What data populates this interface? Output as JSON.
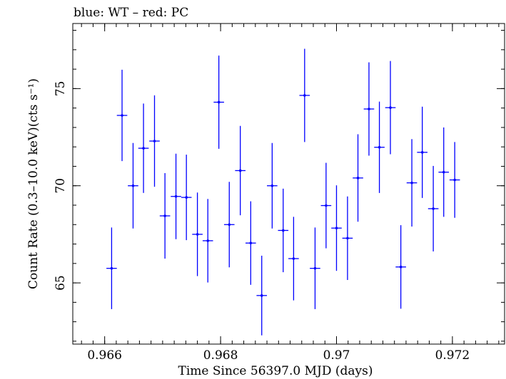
{
  "chart_data": {
    "type": "scatter",
    "title": "blue: WT – red: PC",
    "xlabel": "Time Since 56397.0 MJD (days)",
    "ylabel": "Count Rate (0.3–10.0 keV)(cts s⁻¹)",
    "xlim": [
      0.96545,
      0.9729
    ],
    "ylim": [
      61.85,
      78.35
    ],
    "xticks": [
      {
        "value": 0.966,
        "label": "0.966"
      },
      {
        "value": 0.968,
        "label": "0.968"
      },
      {
        "value": 0.97,
        "label": "0.97"
      },
      {
        "value": 0.972,
        "label": "0.972"
      }
    ],
    "yticks": [
      {
        "value": 65,
        "label": "65"
      },
      {
        "value": 70,
        "label": "70"
      },
      {
        "value": 75,
        "label": "75"
      }
    ],
    "x_minor_step": 0.0002,
    "y_minor_step": 1,
    "series": [
      {
        "color": "#0000ff",
        "x_halfwidth": 9e-05,
        "points": [
          {
            "x": 0.96612,
            "y": 65.75,
            "yerr": 2.1
          },
          {
            "x": 0.9663,
            "y": 73.62,
            "yerr": 2.35
          },
          {
            "x": 0.96649,
            "y": 70.0,
            "yerr": 2.2
          },
          {
            "x": 0.96667,
            "y": 71.93,
            "yerr": 2.3
          },
          {
            "x": 0.96686,
            "y": 72.3,
            "yerr": 2.35
          },
          {
            "x": 0.96704,
            "y": 68.45,
            "yerr": 2.2
          },
          {
            "x": 0.96723,
            "y": 69.45,
            "yerr": 2.2
          },
          {
            "x": 0.96741,
            "y": 69.4,
            "yerr": 2.2
          },
          {
            "x": 0.9676,
            "y": 67.5,
            "yerr": 2.15
          },
          {
            "x": 0.96778,
            "y": 67.17,
            "yerr": 2.15
          },
          {
            "x": 0.96797,
            "y": 74.3,
            "yerr": 2.4
          },
          {
            "x": 0.96815,
            "y": 68.0,
            "yerr": 2.2
          },
          {
            "x": 0.96834,
            "y": 70.78,
            "yerr": 2.3
          },
          {
            "x": 0.96852,
            "y": 67.05,
            "yerr": 2.15
          },
          {
            "x": 0.96871,
            "y": 64.35,
            "yerr": 2.05
          },
          {
            "x": 0.96889,
            "y": 70.0,
            "yerr": 2.2
          },
          {
            "x": 0.96908,
            "y": 67.7,
            "yerr": 2.15
          },
          {
            "x": 0.96926,
            "y": 66.25,
            "yerr": 2.15
          },
          {
            "x": 0.96945,
            "y": 74.65,
            "yerr": 2.4
          },
          {
            "x": 0.96963,
            "y": 65.75,
            "yerr": 2.1
          },
          {
            "x": 0.96982,
            "y": 68.98,
            "yerr": 2.2
          },
          {
            "x": 0.97,
            "y": 67.82,
            "yerr": 2.2
          },
          {
            "x": 0.97019,
            "y": 67.3,
            "yerr": 2.15
          },
          {
            "x": 0.97037,
            "y": 70.4,
            "yerr": 2.25
          },
          {
            "x": 0.97056,
            "y": 73.95,
            "yerr": 2.4
          },
          {
            "x": 0.97074,
            "y": 71.98,
            "yerr": 2.35
          },
          {
            "x": 0.97093,
            "y": 74.02,
            "yerr": 2.4
          },
          {
            "x": 0.97111,
            "y": 65.82,
            "yerr": 2.15
          },
          {
            "x": 0.9713,
            "y": 70.15,
            "yerr": 2.25
          },
          {
            "x": 0.97148,
            "y": 71.72,
            "yerr": 2.35
          },
          {
            "x": 0.97167,
            "y": 68.82,
            "yerr": 2.2
          },
          {
            "x": 0.97185,
            "y": 70.7,
            "yerr": 2.3
          },
          {
            "x": 0.97204,
            "y": 70.3,
            "yerr": 1.95
          }
        ]
      }
    ],
    "grid": false,
    "legend": "none"
  }
}
